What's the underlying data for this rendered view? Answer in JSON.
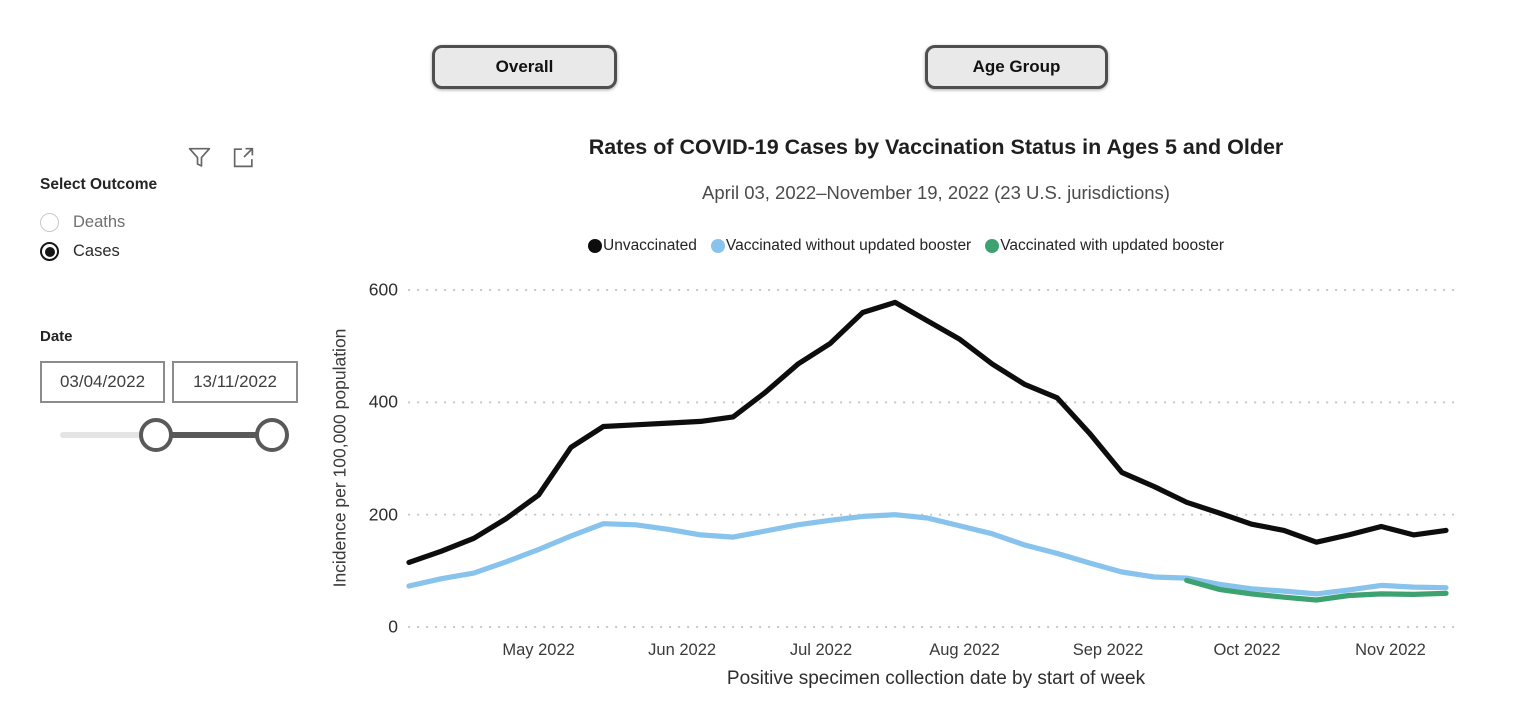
{
  "tabs": [
    {
      "label": "Overall"
    },
    {
      "label": "Age Group"
    }
  ],
  "sidebar": {
    "header_icons": [
      "filter-icon",
      "focus-mode-icon"
    ],
    "select_outcome_label": "Select Outcome",
    "outcomes": [
      {
        "label": "Deaths",
        "selected": false
      },
      {
        "label": "Cases",
        "selected": true
      }
    ],
    "date_label": "Date",
    "date_start": "03/04/2022",
    "date_end": "13/11/2022"
  },
  "chart": {
    "title": "Rates of COVID-19 Cases by Vaccination Status in Ages 5 and Older",
    "subtitle": "April 03, 2022–November 19, 2022 (23 U.S. jurisdictions)"
  },
  "chart_data": {
    "type": "line",
    "title": "Rates of COVID-19 Cases by Vaccination Status in Ages 5 and Older",
    "subtitle": "April 03, 2022–November 19, 2022 (23 U.S. jurisdictions)",
    "xlabel": "Positive specimen collection date by start of week",
    "ylabel": "Incidence per 100,000 population",
    "ylim": [
      0,
      600
    ],
    "yticks": [
      0,
      200,
      400,
      600
    ],
    "grid": "dotted-horizontal",
    "legend_position": "top",
    "x_week_starts": [
      "2022-04-03",
      "2022-04-10",
      "2022-04-17",
      "2022-04-24",
      "2022-05-01",
      "2022-05-08",
      "2022-05-15",
      "2022-05-22",
      "2022-05-29",
      "2022-06-05",
      "2022-06-12",
      "2022-06-19",
      "2022-06-26",
      "2022-07-03",
      "2022-07-10",
      "2022-07-17",
      "2022-07-24",
      "2022-07-31",
      "2022-08-07",
      "2022-08-14",
      "2022-08-21",
      "2022-08-28",
      "2022-09-04",
      "2022-09-11",
      "2022-09-18",
      "2022-09-25",
      "2022-10-02",
      "2022-10-09",
      "2022-10-16",
      "2022-10-23",
      "2022-10-30",
      "2022-11-06",
      "2022-11-13"
    ],
    "xticks": [
      {
        "label": "May 2022",
        "day_offset": 28
      },
      {
        "label": "Jun 2022",
        "day_offset": 59
      },
      {
        "label": "Jul 2022",
        "day_offset": 89
      },
      {
        "label": "Aug 2022",
        "day_offset": 120
      },
      {
        "label": "Sep 2022",
        "day_offset": 151
      },
      {
        "label": "Oct 2022",
        "day_offset": 181
      },
      {
        "label": "Nov 2022",
        "day_offset": 212
      }
    ],
    "series": [
      {
        "name": "Unvaccinated",
        "color": "#0d0d0d",
        "values": [
          115,
          135,
          158,
          193,
          235,
          320,
          357,
          360,
          363,
          366,
          374,
          418,
          468,
          505,
          560,
          578,
          545,
          512,
          468,
          432,
          408,
          345,
          275,
          250,
          222,
          203,
          183,
          172,
          151,
          164,
          179,
          164,
          172
        ]
      },
      {
        "name": "Vaccinated without updated booster",
        "color": "#87C3EC",
        "values": [
          73,
          86,
          96,
          116,
          138,
          162,
          184,
          182,
          174,
          164,
          160,
          171,
          182,
          190,
          197,
          200,
          194,
          180,
          166,
          146,
          131,
          114,
          98,
          89,
          87,
          76,
          68,
          64,
          59,
          66,
          74,
          71,
          70
        ]
      },
      {
        "name": "Vaccinated with updated booster",
        "color": "#3EA170",
        "values": [
          null,
          null,
          null,
          null,
          null,
          null,
          null,
          null,
          null,
          null,
          null,
          null,
          null,
          null,
          null,
          null,
          null,
          null,
          null,
          null,
          null,
          null,
          null,
          null,
          83,
          67,
          59,
          53,
          48,
          56,
          59,
          58,
          60
        ]
      }
    ]
  }
}
